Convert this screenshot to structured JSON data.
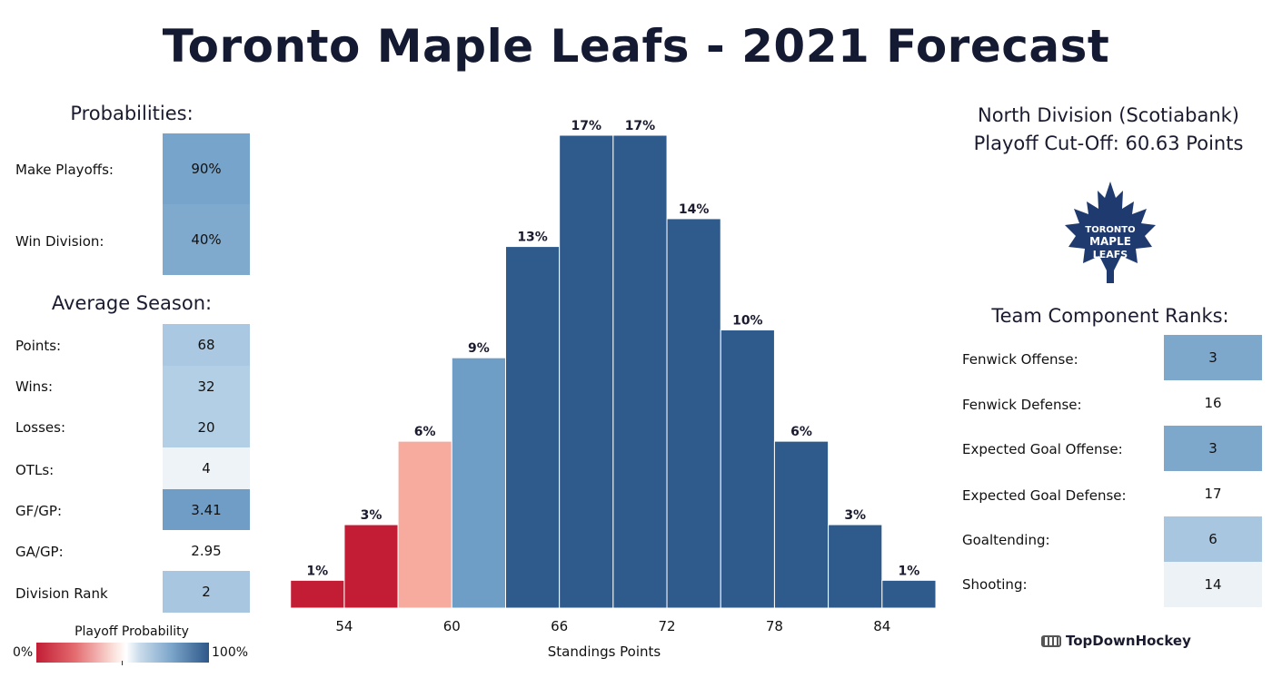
{
  "title": "Toronto Maple Leafs - 2021 Forecast",
  "probabilities": {
    "heading": "Probabilities:",
    "rows": [
      {
        "label": "Make Playoffs:",
        "value": "90%",
        "color": "#77a4ca"
      },
      {
        "label": "Win Division:",
        "value": "40%",
        "color": "#7fa9cd"
      }
    ]
  },
  "average_season": {
    "heading": "Average Season:",
    "rows": [
      {
        "label": "Points:",
        "value": "68",
        "color": "#aac8e2"
      },
      {
        "label": "Wins:",
        "value": "32",
        "color": "#b3cfe6"
      },
      {
        "label": "Losses:",
        "value": "20",
        "color": "#b3cfe6"
      },
      {
        "label": "OTLs:",
        "value": "4",
        "color": "#eef3f8"
      },
      {
        "label": "GF/GP:",
        "value": "3.41",
        "color": "#6f9dc6"
      },
      {
        "label": "GA/GP:",
        "value": "2.95",
        "color": "#ffffff"
      },
      {
        "label": "Division Rank",
        "value": "2",
        "color": "#a8c6e0"
      }
    ]
  },
  "division": {
    "line1": "North Division (Scotiabank)",
    "line2": "Playoff Cut-Off: 60.63 Points"
  },
  "logo": {
    "icon": "maple-leaf-icon",
    "text_line1": "TORONTO",
    "text_line2": "MAPLE",
    "text_line3": "LEAFS",
    "color": "#1f3a6e"
  },
  "team_ranks": {
    "heading": "Team Component Ranks:",
    "rows": [
      {
        "label": "Fenwick Offense:",
        "value": "3",
        "color": "#7ea7cc"
      },
      {
        "label": "Fenwick Defense:",
        "value": "16",
        "color": "#ffffff"
      },
      {
        "label": "Expected Goal Offense:",
        "value": "3",
        "color": "#7ea7cc"
      },
      {
        "label": "Expected Goal Defense:",
        "value": "17",
        "color": "#ffffff"
      },
      {
        "label": "Goaltending:",
        "value": "6",
        "color": "#a8c6e0"
      },
      {
        "label": "Shooting:",
        "value": "14",
        "color": "#edf2f7"
      }
    ]
  },
  "legend": {
    "title": "Playoff Probability",
    "min_label": "0%",
    "max_label": "100%"
  },
  "brand": {
    "name": "TopDownHockey",
    "icon": "hockey-net-icon"
  },
  "chart_data": {
    "type": "bar",
    "xlabel": "Standings Points",
    "ylabel": "",
    "x_ticks": [
      54,
      60,
      66,
      72,
      78,
      84
    ],
    "xlim": [
      50,
      87
    ],
    "ylim": [
      0,
      17
    ],
    "bin_width": 3,
    "bins": [
      {
        "center": 52.5,
        "value": 1,
        "label": "1%",
        "color": "#c21d35"
      },
      {
        "center": 55.5,
        "value": 3,
        "label": "3%",
        "color": "#c21d35"
      },
      {
        "center": 58.5,
        "value": 6,
        "label": "6%",
        "color": "#f7ab9e"
      },
      {
        "center": 61.5,
        "value": 9,
        "label": "9%",
        "color": "#6e9dc6"
      },
      {
        "center": 64.5,
        "value": 13,
        "label": "13%",
        "color": "#2e5a8c"
      },
      {
        "center": 67.5,
        "value": 17,
        "label": "17%",
        "color": "#2e5a8c"
      },
      {
        "center": 70.5,
        "value": 17,
        "label": "17%",
        "color": "#2e5a8c"
      },
      {
        "center": 73.5,
        "value": 14,
        "label": "14%",
        "color": "#2e5a8c"
      },
      {
        "center": 76.5,
        "value": 10,
        "label": "10%",
        "color": "#2e5a8c"
      },
      {
        "center": 79.5,
        "value": 6,
        "label": "6%",
        "color": "#2e5a8c"
      },
      {
        "center": 82.5,
        "value": 3,
        "label": "3%",
        "color": "#2e5a8c"
      },
      {
        "center": 85.5,
        "value": 1,
        "label": "1%",
        "color": "#2e5a8c"
      }
    ]
  }
}
